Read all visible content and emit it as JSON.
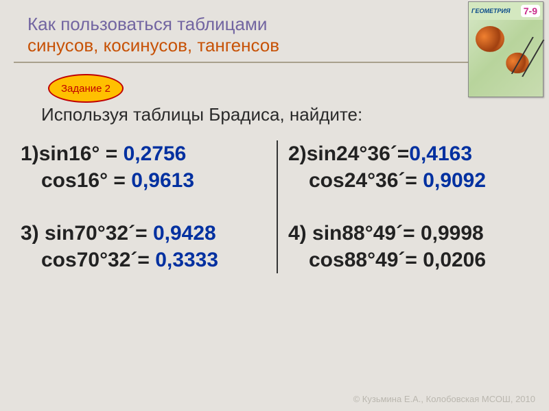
{
  "title": {
    "line1": "Как пользоваться таблицами",
    "line2": "синусов, косинусов, тангенсов"
  },
  "badge": {
    "label": "Задание 2"
  },
  "instruction": "Используя таблицы Брадиса, найдите:",
  "items": [
    {
      "num": "1)",
      "sin_label": "sin16° =",
      "sin_val": "0,2756",
      "cos_label": "cos16° =",
      "cos_val": "0,9613",
      "val_color": "#0030a0"
    },
    {
      "num": "2)",
      "sin_label": "sin24°36´=",
      "sin_val": "0,4163",
      "cos_label": "cos24°36´=",
      "cos_val": "0,9092",
      "val_color": "#0030a0"
    },
    {
      "num": "3)",
      "sin_label": "sin70°32´=",
      "sin_val": "0,9428",
      "cos_label": "cos70°32´=",
      "cos_val": "0,3333",
      "val_color_sin": "#0030a0",
      "val_color_cos": "#0030a0"
    },
    {
      "num": "4)",
      "sin_label": "sin88°49´=",
      "sin_val": "0,9998",
      "cos_label": "cos88°49´=",
      "cos_val": "0,0206",
      "val_color_sin": "#222",
      "val_color_cos": "#222"
    }
  ],
  "footer": "© Кузьмина Е.А., Колобовская МСОШ, 2010",
  "book": {
    "title": "ГЕОМЕТРИЯ",
    "grade": "7-9"
  },
  "colors": {
    "background": "#e5e2dd",
    "title1": "#7265a1",
    "title2": "#c75206",
    "badge_bg": "#ffc000",
    "badge_fg": "#c00000",
    "value_blue": "#0030a0",
    "text": "#222"
  }
}
